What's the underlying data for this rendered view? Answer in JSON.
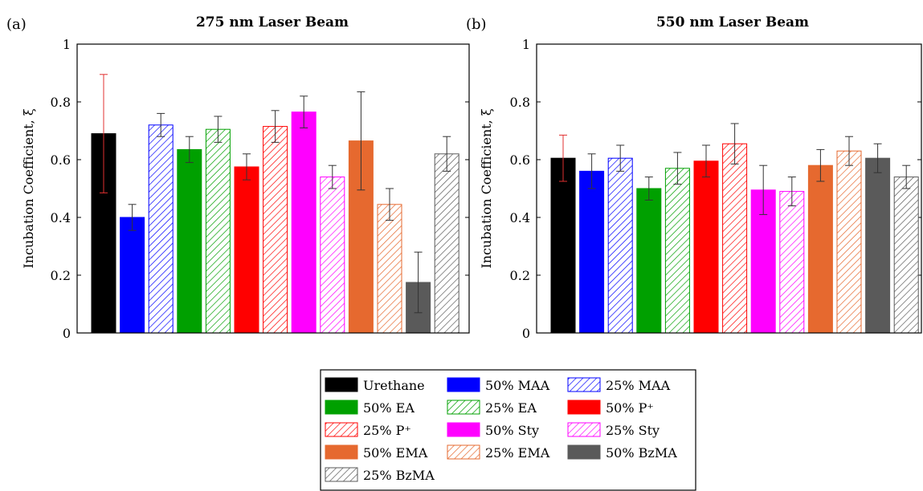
{
  "chart_data": [
    {
      "type": "bar",
      "panel_label": "(a)",
      "title": "275 nm Laser Beam",
      "ylabel": "Incubation Coefficient, ξ",
      "xlabel": "",
      "ylim": [
        0,
        1
      ],
      "yticks": [
        "0",
        "0.2",
        "0.4",
        "0.6",
        "0.8",
        "1"
      ],
      "grid": false,
      "categories": [
        "Urethane",
        "50% MAA",
        "25% MAA",
        "50% EA",
        "25% EA",
        "50% P⁺",
        "25% P⁺",
        "50% Sty",
        "25% Sty",
        "50% EMA",
        "25% EMA",
        "50% BzMA",
        "25% BzMA"
      ],
      "values": [
        0.69,
        0.4,
        0.72,
        0.635,
        0.705,
        0.575,
        0.715,
        0.765,
        0.54,
        0.665,
        0.445,
        0.175,
        0.62
      ],
      "errors": [
        0.205,
        0.045,
        0.04,
        0.045,
        0.045,
        0.045,
        0.055,
        0.055,
        0.04,
        0.17,
        0.055,
        0.105,
        0.06
      ]
    },
    {
      "type": "bar",
      "panel_label": "(b)",
      "title": "550 nm Laser Beam",
      "ylabel": "Incubation Coefficient, ξ",
      "xlabel": "",
      "ylim": [
        0,
        1
      ],
      "yticks": [
        "0",
        "0.2",
        "0.4",
        "0.6",
        "0.8",
        "1"
      ],
      "grid": false,
      "categories": [
        "Urethane",
        "50% MAA",
        "25% MAA",
        "50% EA",
        "25% EA",
        "50% P⁺",
        "25% P⁺",
        "50% Sty",
        "25% Sty",
        "50% EMA",
        "25% EMA",
        "50% BzMA",
        "25% BzMA"
      ],
      "values": [
        0.605,
        0.56,
        0.605,
        0.5,
        0.57,
        0.595,
        0.655,
        0.495,
        0.49,
        0.58,
        0.63,
        0.605,
        0.54
      ],
      "errors": [
        0.08,
        0.06,
        0.045,
        0.04,
        0.055,
        0.055,
        0.07,
        0.085,
        0.05,
        0.055,
        0.05,
        0.05,
        0.04
      ]
    }
  ],
  "legend": {
    "placement": "bottom-center",
    "entries": [
      {
        "label": "Urethane",
        "color": "#000000",
        "hatched": false
      },
      {
        "label": "50% MAA",
        "color": "#0000ff",
        "hatched": false
      },
      {
        "label": "25% MAA",
        "color": "#0000ff",
        "hatched": true
      },
      {
        "label": "50% EA",
        "color": "#00a000",
        "hatched": false
      },
      {
        "label": "25% EA",
        "color": "#00a000",
        "hatched": true
      },
      {
        "label": "50% P⁺",
        "color": "#ff0000",
        "hatched": false
      },
      {
        "label": "25% P⁺",
        "color": "#ff0000",
        "hatched": true
      },
      {
        "label": "50% Sty",
        "color": "#ff00ff",
        "hatched": false
      },
      {
        "label": "25% Sty",
        "color": "#ff00ff",
        "hatched": true
      },
      {
        "label": "50% EMA",
        "color": "#e6692f",
        "hatched": false
      },
      {
        "label": "25% EMA",
        "color": "#e6692f",
        "hatched": true
      },
      {
        "label": "50% BzMA",
        "color": "#5a5a5a",
        "hatched": false
      },
      {
        "label": "25% BzMA",
        "color": "#5a5a5a",
        "hatched": true
      }
    ]
  },
  "colors": {
    "urethane_error_bar": "#e03030",
    "error_bar": "#333333"
  }
}
